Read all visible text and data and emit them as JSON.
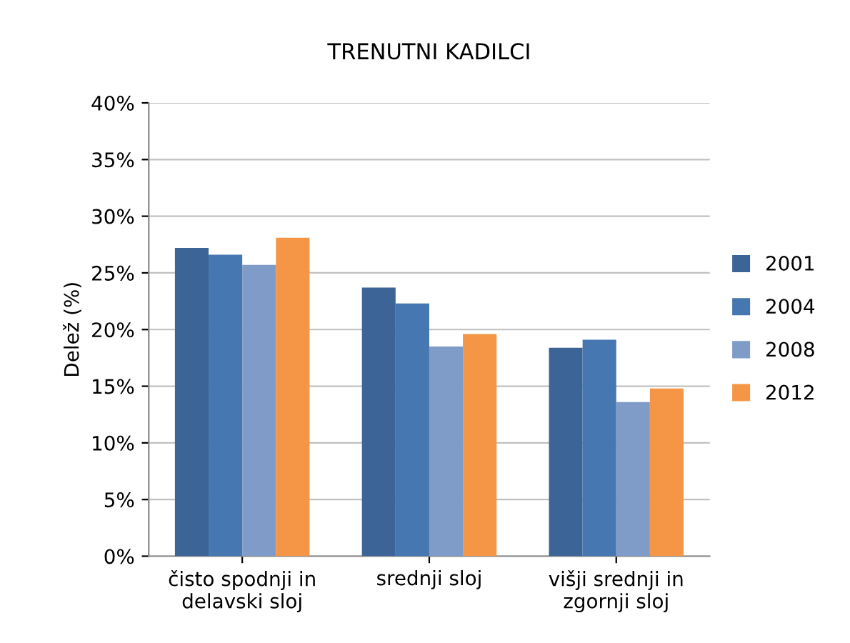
{
  "chart_data": {
    "type": "bar",
    "title": "TRENUTNI KADILCI",
    "ylabel": "Delež (%)",
    "categories": [
      "čisto spodnji in\ndelavski sloj",
      "srednji sloj",
      "višji srednji in\nzgornji sloj"
    ],
    "series": [
      {
        "name": "2001",
        "color": "#3c6496",
        "values": [
          27.2,
          23.7,
          18.4
        ]
      },
      {
        "name": "2004",
        "color": "#4677b0",
        "values": [
          26.6,
          22.3,
          19.1
        ]
      },
      {
        "name": "2008",
        "color": "#7f9cc8",
        "values": [
          25.7,
          18.5,
          13.6
        ]
      },
      {
        "name": "2012",
        "color": "#f59647",
        "values": [
          28.1,
          19.6,
          14.8
        ]
      }
    ],
    "ylim": [
      0,
      40
    ],
    "yticks": [
      {
        "value": 0,
        "label": "0%"
      },
      {
        "value": 5,
        "label": "5%"
      },
      {
        "value": 10,
        "label": "10%"
      },
      {
        "value": 15,
        "label": "15%"
      },
      {
        "value": 20,
        "label": "20%"
      },
      {
        "value": 25,
        "label": "25%"
      },
      {
        "value": 30,
        "label": "30%"
      },
      {
        "value": 35,
        "label": "35%"
      },
      {
        "value": 40,
        "label": "40%"
      }
    ],
    "grid": "y",
    "legend": "right"
  }
}
